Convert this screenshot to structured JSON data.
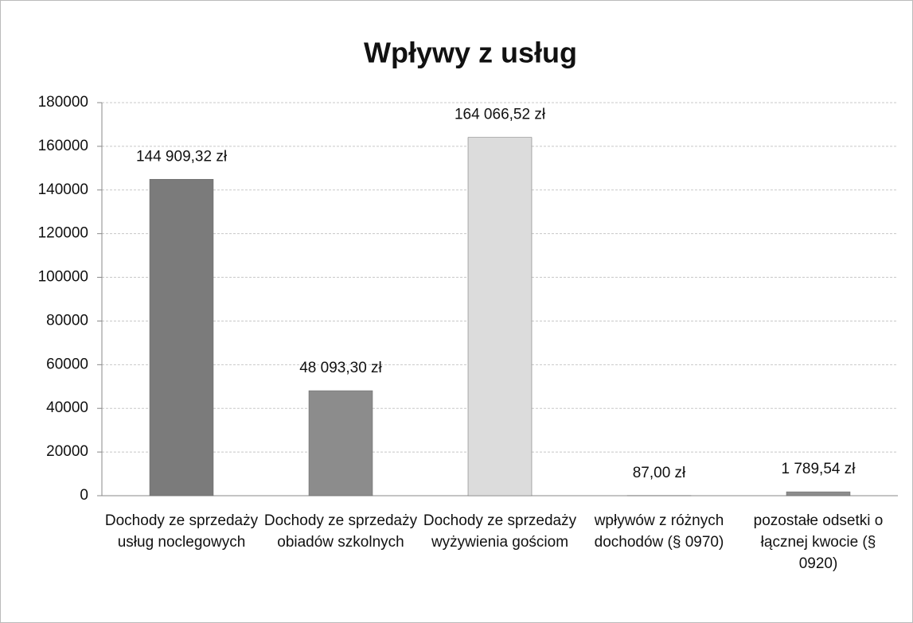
{
  "chart_data": {
    "type": "bar",
    "title": "Wpływy z usług",
    "categories": [
      "Dochody ze sprzedaży usług noclegowych",
      "Dochody ze sprzedaży obiadów szkolnych",
      "Dochody ze sprzedaży wyżywienia gościom",
      "wpływów z różnych dochodów (§ 0970)",
      "pozostałe odsetki o łącznej kwocie (§ 0920)"
    ],
    "values": [
      144909.32,
      48093.3,
      164066.52,
      87.0,
      1789.54
    ],
    "value_labels": [
      "144 909,32 zł",
      "48 093,30 zł",
      "164 066,52 zł",
      "87,00 zł",
      "1 789,54 zł"
    ],
    "colors": [
      "#7b7b7b",
      "#8c8c8c",
      "#dcdcdc",
      "#8c8c8c",
      "#8c8c8c"
    ],
    "ylim": [
      0,
      180000
    ],
    "yticks": [
      0,
      20000,
      40000,
      60000,
      80000,
      100000,
      120000,
      140000,
      160000,
      180000
    ],
    "grid": true
  }
}
